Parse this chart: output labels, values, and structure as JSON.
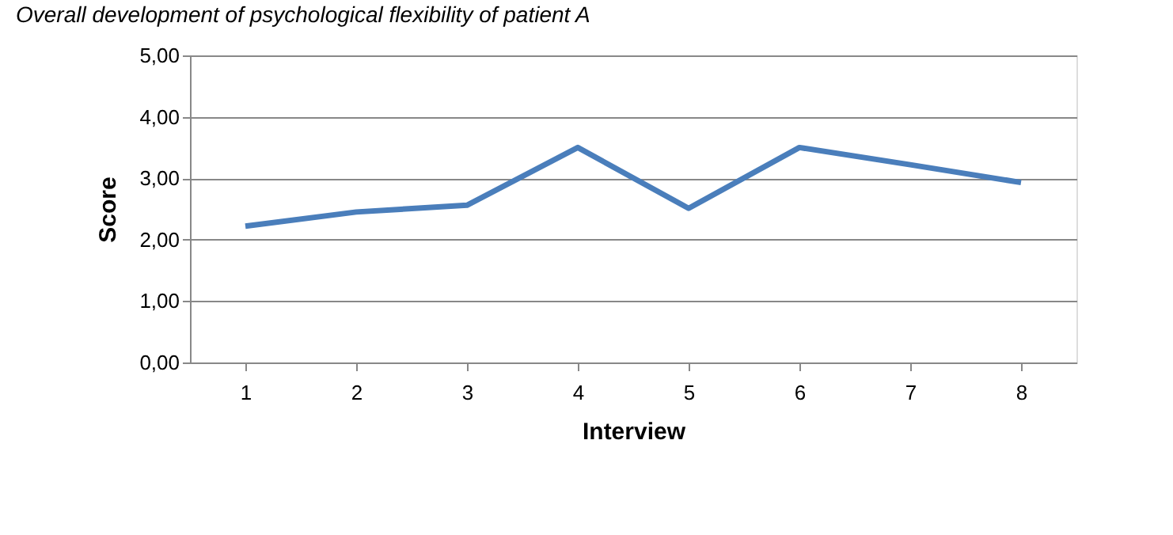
{
  "chart_data": {
    "type": "line",
    "title": "Overall development of psychological flexibility of patient A",
    "xlabel": "Interview",
    "ylabel": "Score",
    "categories": [
      "1",
      "2",
      "3",
      "4",
      "5",
      "6",
      "7",
      "8"
    ],
    "series": [
      {
        "color": "#4a7ebb",
        "values": [
          2.22,
          2.45,
          2.56,
          3.5,
          2.51,
          3.5,
          3.22,
          2.93
        ]
      }
    ],
    "ylim": [
      0,
      5
    ],
    "yticks": [
      {
        "value": 0,
        "label": "0,00"
      },
      {
        "value": 1,
        "label": "1,00"
      },
      {
        "value": 2,
        "label": "2,00"
      },
      {
        "value": 3,
        "label": "3,00"
      },
      {
        "value": 4,
        "label": "4,00"
      },
      {
        "value": 5,
        "label": "5,00"
      }
    ],
    "grid": "y",
    "marker": "none",
    "line_style": "solid",
    "legend": false
  }
}
